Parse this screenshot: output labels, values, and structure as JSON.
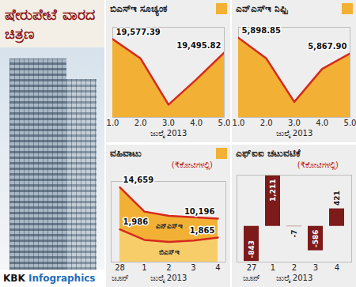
{
  "title": "ಷೇರುಪೇಟೆ ವಾರದ ಚಿತ್ರಣ",
  "credit": "KBK Infographics",
  "chart_data": [
    {
      "type": "area",
      "title": "ಬಿಎಸ್‌ಇ ಸೂಚ್ಯಂಕ",
      "x": [
        1,
        2,
        3,
        4,
        5
      ],
      "xlim": [
        1,
        5
      ],
      "xticks": [
        1,
        2,
        3,
        4,
        5
      ],
      "x_label": "ಜುಲೈ 2013",
      "values": [
        19577.39,
        19459,
        19177.76,
        19332,
        19495.82
      ],
      "value_labels": [
        "19,577.39",
        null,
        null,
        null,
        "19,495.82"
      ],
      "color": "#d62a1f",
      "ylim": [
        19100,
        19650
      ],
      "data_labels": true,
      "tick_labels": "x"
    },
    {
      "type": "area",
      "title": "ಎನ್‌ಎಸ್‌ಇ ನಿಫ್ಟಿ",
      "x": [
        1,
        2,
        3,
        4,
        5
      ],
      "xlim": [
        1,
        5
      ],
      "xticks": [
        1,
        2,
        3,
        4,
        5
      ],
      "x_label": "ಜುಲೈ 2013",
      "values": [
        5898.85,
        5857.55,
        5770.9,
        5836.95,
        5867.9
      ],
      "value_labels": [
        "5,898.85",
        null,
        null,
        null,
        "5,867.90"
      ],
      "color": "#d62a1f",
      "ylim": [
        5740,
        5920
      ],
      "data_labels": true,
      "tick_labels": "x"
    },
    {
      "type": "area",
      "title": "ವಹಿವಾಟು",
      "subtitle": "(₹ಕೋಟಿಗಳಲ್ಲಿ)",
      "categories": [
        "28",
        "1",
        "2",
        "3",
        "4"
      ],
      "x_label": "ಜುಲೈ 2013",
      "annotations": [
        {
          "text": "ಜೂನ್",
          "x": "28"
        }
      ],
      "series": [
        {
          "name": "ಎನ್‌ಎಸ್‌ಇ",
          "color": "#d62a1f",
          "values": [
            14659,
            11200,
            10600,
            10400,
            10196
          ],
          "value_labels": [
            "14,659",
            null,
            null,
            null,
            "10,196"
          ]
        },
        {
          "name": "ಬಿಎಸ್‌ಇ",
          "color": "#d62a1f",
          "axis": "y2",
          "values": [
            1986,
            1830,
            1800,
            1820,
            1865
          ],
          "value_labels": [
            "1,986",
            null,
            null,
            null,
            "1,865"
          ]
        }
      ],
      "ylim": [
        4000,
        15500
      ],
      "y2lim": [
        1500,
        2700
      ],
      "data_labels": true,
      "tick_labels": "x"
    },
    {
      "type": "bar",
      "title": "ಎಫ್‌ಐಐ ಚಟುವಟಿಕೆ",
      "subtitle": "(₹ಕೋಟಿಗಳಲ್ಲಿ)",
      "categories": [
        "27",
        "1",
        "2",
        "3",
        "4"
      ],
      "x_label": "ಜುಲೈ 2013",
      "annotations": [
        {
          "text": "ಜೂನ್",
          "x": "27"
        }
      ],
      "values": [
        -843,
        1211,
        -7,
        -586,
        421
      ],
      "value_labels": [
        "-843",
        "1,211",
        "-7",
        "-586",
        "421"
      ],
      "color": "#7d1a1a",
      "ylim": [
        -860,
        1230
      ],
      "data_labels": true,
      "tick_labels": "x"
    }
  ]
}
